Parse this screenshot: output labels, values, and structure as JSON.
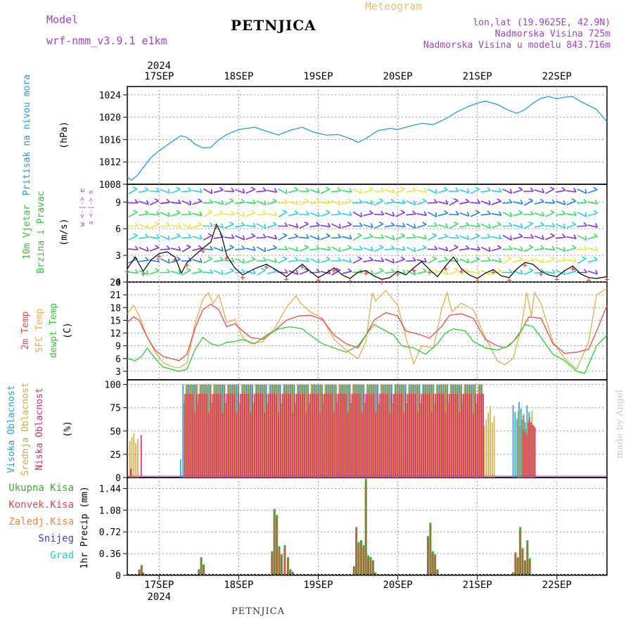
{
  "header": {
    "model_label": "Model",
    "model_name": "wrf-nmm_v3.9.1  e1km",
    "title": "PETNJICA",
    "meteogram": "Meteogram",
    "lonlat": "lon,lat (19.9625E, 42.9N)",
    "altitude": "Nadmorska Visina 725m",
    "model_altitude": "Nadmorska Visina u modelu 843.716m"
  },
  "footer": {
    "station": "PETNJICA",
    "credit": "made by Angel"
  },
  "colors": {
    "pressure": "#1e9be6",
    "t2m": "#f04848",
    "tsfc": "#e0b048",
    "dewpt": "#28d028",
    "high_cloud": "#18a0e8",
    "mid_cloud": "#d8a838",
    "low_cloud": "#d82878",
    "precip_total": "#44a830",
    "precip_conv": "#e84848",
    "precip_strat": "#f08838",
    "snow": "#4040e0",
    "hail": "#28c8c8",
    "wind_label": "#28c828",
    "cloud_axis": "#a040d0"
  },
  "time_axis": {
    "year_top": "2024",
    "year_bottom": "2024",
    "days": [
      "17SEP",
      "18SEP",
      "19SEP",
      "20SEP",
      "21SEP",
      "22SEP"
    ],
    "day_positions": [
      1,
      2,
      3,
      4,
      5,
      6
    ],
    "range": [
      0.6,
      6.63
    ]
  },
  "chart_data": [
    {
      "type": "line",
      "title": "Pritisak na nivou mora",
      "ylabel": "(hPa)",
      "ylim": [
        1008,
        1025.5
      ],
      "yticks": [
        1008,
        1012,
        1016,
        1020,
        1024
      ],
      "grid": true,
      "series": [
        {
          "name": "Pritisak na nivou mora",
          "x": [
            0.6,
            0.65,
            0.72,
            0.8,
            0.9,
            1.0,
            1.1,
            1.2,
            1.27,
            1.35,
            1.45,
            1.55,
            1.65,
            1.75,
            1.85,
            2.0,
            2.2,
            2.35,
            2.5,
            2.65,
            2.8,
            2.95,
            3.1,
            3.25,
            3.4,
            3.5,
            3.6,
            3.75,
            3.9,
            4.0,
            4.15,
            4.3,
            4.45,
            4.6,
            4.75,
            4.9,
            5.0,
            5.1,
            5.25,
            5.4,
            5.5,
            5.6,
            5.7,
            5.8,
            5.9,
            6.0,
            6.1,
            6.2,
            6.3,
            6.4,
            6.5,
            6.63
          ],
          "y": [
            1009.3,
            1008.7,
            1009.5,
            1011,
            1012.8,
            1014,
            1015,
            1016,
            1016.7,
            1016.4,
            1015.2,
            1014.5,
            1014.6,
            1016,
            1016.9,
            1017.8,
            1018.2,
            1017.5,
            1016.8,
            1017.7,
            1018.2,
            1017.3,
            1016.8,
            1016.9,
            1016.2,
            1015.5,
            1016.2,
            1017.6,
            1018,
            1017.8,
            1018.4,
            1018.9,
            1018.7,
            1019.7,
            1021,
            1022,
            1022.5,
            1022.9,
            1022.3,
            1021.2,
            1020.7,
            1021.4,
            1022.5,
            1023.4,
            1023.7,
            1023.3,
            1023.6,
            1023.7,
            1022.8,
            1022.1,
            1021.4,
            1019.2
          ]
        }
      ]
    },
    {
      "type": "line",
      "title": "10m Vjetar Brzina i Pravac",
      "ylabel": "(m/s)",
      "compass_label": "w <-|-> e",
      "compass_sub": "s <-|-> n",
      "ylim": [
        0,
        11
      ],
      "yticks": [
        0,
        3,
        6,
        9
      ],
      "grid": true,
      "series": [
        {
          "name": "wind speed",
          "x": [
            0.6,
            0.7,
            0.8,
            0.9,
            1.0,
            1.1,
            1.2,
            1.28,
            1.35,
            1.45,
            1.55,
            1.65,
            1.72,
            1.78,
            1.85,
            1.95,
            2.05,
            2.2,
            2.35,
            2.5,
            2.6,
            2.7,
            2.8,
            2.9,
            3.0,
            3.1,
            3.2,
            3.3,
            3.4,
            3.5,
            3.6,
            3.7,
            3.8,
            3.9,
            4.0,
            4.1,
            4.2,
            4.3,
            4.4,
            4.5,
            4.6,
            4.7,
            4.8,
            4.9,
            5.0,
            5.1,
            5.2,
            5.3,
            5.4,
            5.5,
            5.6,
            5.7,
            5.8,
            5.9,
            6.0,
            6.1,
            6.2,
            6.3,
            6.4,
            6.5,
            6.63
          ],
          "y": [
            1.5,
            2.8,
            1.2,
            2.5,
            3.2,
            3.4,
            2.8,
            1.0,
            2.2,
            3.0,
            3.8,
            4.5,
            6.5,
            5.4,
            3.0,
            1.6,
            0.8,
            1.5,
            2.0,
            1.2,
            0.6,
            1.3,
            2.0,
            1.2,
            0.5,
            1.0,
            1.6,
            0.8,
            0.4,
            1.1,
            1.3,
            0.7,
            0.3,
            0.5,
            1.2,
            0.8,
            1.6,
            2.3,
            1.4,
            0.6,
            1.8,
            2.8,
            1.5,
            0.8,
            0.4,
            1.0,
            1.4,
            0.7,
            0.5,
            1.5,
            2.2,
            2.0,
            1.2,
            0.8,
            0.6,
            1.3,
            1.8,
            0.9,
            0.5,
            0.4,
            0.6
          ]
        }
      ]
    },
    {
      "type": "line",
      "title": "2m Temp / SFC Temp / dewpt Temp",
      "ylabel": "(C)",
      "ylim": [
        1,
        24
      ],
      "yticks": [
        3,
        6,
        9,
        12,
        15,
        18,
        21,
        24
      ],
      "grid": true,
      "series": [
        {
          "name": "2m Temp",
          "x": [
            0.6,
            0.68,
            0.75,
            0.85,
            0.95,
            1.05,
            1.15,
            1.25,
            1.35,
            1.45,
            1.55,
            1.65,
            1.75,
            1.85,
            1.95,
            2.05,
            2.15,
            2.3,
            2.45,
            2.6,
            2.75,
            2.9,
            3.05,
            3.2,
            3.35,
            3.5,
            3.6,
            3.7,
            3.85,
            4.0,
            4.1,
            4.25,
            4.4,
            4.55,
            4.65,
            4.8,
            4.95,
            5.1,
            5.25,
            5.35,
            5.45,
            5.55,
            5.65,
            5.8,
            5.95,
            6.1,
            6.25,
            6.4,
            6.5,
            6.63
          ],
          "y": [
            14.5,
            15.8,
            15,
            11,
            8,
            6.5,
            6,
            5.5,
            7,
            13,
            17.5,
            18.8,
            17.5,
            13.5,
            14.2,
            12.5,
            11,
            10.5,
            12.5,
            15,
            16,
            16.2,
            15.2,
            11.5,
            9.5,
            8.5,
            11.5,
            15,
            16.8,
            16,
            12.5,
            11.8,
            10.8,
            13.5,
            16.2,
            16.5,
            15.5,
            10.5,
            9,
            8.5,
            10,
            12.5,
            15.8,
            15.5,
            9.5,
            7.2,
            7.5,
            8.2,
            12.5,
            18.5
          ]
        },
        {
          "name": "SFC Temp",
          "x": [
            0.6,
            0.68,
            0.75,
            0.85,
            0.95,
            1.05,
            1.15,
            1.25,
            1.35,
            1.45,
            1.55,
            1.62,
            1.68,
            1.75,
            1.85,
            1.95,
            2.05,
            2.15,
            2.3,
            2.45,
            2.6,
            2.72,
            2.78,
            2.9,
            3.05,
            3.2,
            3.35,
            3.5,
            3.6,
            3.68,
            3.72,
            3.85,
            4.0,
            4.1,
            4.2,
            4.3,
            4.45,
            4.55,
            4.62,
            4.68,
            4.8,
            4.95,
            5.1,
            5.25,
            5.35,
            5.45,
            5.55,
            5.62,
            5.68,
            5.72,
            5.8,
            5.95,
            6.1,
            6.25,
            6.4,
            6.5,
            6.63
          ],
          "y": [
            16.5,
            18.5,
            16,
            11,
            7.5,
            5,
            4.2,
            3.8,
            5,
            14,
            20,
            21.5,
            19,
            21,
            14.5,
            15.2,
            11,
            9.5,
            10,
            13,
            18,
            20.8,
            19,
            17,
            15.5,
            10.5,
            8,
            6,
            10,
            21.5,
            19.5,
            22,
            18.5,
            11,
            4.8,
            9,
            8.5,
            17.5,
            21.5,
            17,
            19,
            17.5,
            11,
            5.5,
            4.5,
            6,
            13,
            21.5,
            16,
            21.5,
            19,
            10,
            6,
            3.5,
            10,
            21,
            22.5
          ]
        },
        {
          "name": "dewpt Temp",
          "x": [
            0.6,
            0.7,
            0.78,
            0.85,
            0.95,
            1.05,
            1.15,
            1.25,
            1.35,
            1.45,
            1.55,
            1.65,
            1.75,
            1.85,
            1.95,
            2.05,
            2.2,
            2.35,
            2.5,
            2.65,
            2.8,
            2.9,
            3.05,
            3.2,
            3.35,
            3.5,
            3.6,
            3.7,
            3.85,
            3.95,
            4.05,
            4.2,
            4.35,
            4.5,
            4.6,
            4.7,
            4.85,
            4.95,
            5.1,
            5.25,
            5.4,
            5.5,
            5.6,
            5.7,
            5.8,
            5.95,
            6.1,
            6.25,
            6.35,
            6.5,
            6.63
          ],
          "y": [
            6,
            5.5,
            6.5,
            8.5,
            6,
            4,
            3.5,
            3,
            3.5,
            8,
            11,
            9.5,
            9,
            9.8,
            10,
            10.5,
            9.5,
            11.5,
            13,
            13.5,
            13,
            11.5,
            9.5,
            8.5,
            7.5,
            9,
            11.5,
            14,
            12.5,
            11.5,
            9,
            8.5,
            7,
            9.5,
            12,
            13,
            12.5,
            10,
            8.5,
            8,
            9,
            11,
            14,
            13.5,
            11,
            7,
            5.5,
            3,
            2.5,
            9,
            11.5
          ]
        }
      ]
    },
    {
      "type": "bar",
      "title": "Visoka Oblacnost / Srednja Oblacnost / Niska Oblacnost",
      "ylabel": "(%)",
      "ylim": [
        0,
        105
      ],
      "yticks": [
        0,
        25,
        50,
        75,
        100
      ],
      "grid": true,
      "note": "vertical bars per model time step; values read from figure",
      "series": [
        {
          "name": "Visoka Oblacnost",
          "segments": [
            [
              0.62,
              0.62,
              0
            ],
            [
              1.27,
              1.27,
              25
            ],
            [
              1.3,
              3.45,
              100
            ],
            [
              3.45,
              4.55,
              100
            ],
            [
              4.55,
              5.05,
              100
            ],
            [
              5.05,
              5.45,
              0
            ],
            [
              5.45,
              5.65,
              85
            ]
          ]
        },
        {
          "name": "Srednja Oblacnost",
          "segments": [
            [
              0.62,
              0.72,
              50
            ],
            [
              1.3,
              3.45,
              100
            ],
            [
              3.45,
              4.55,
              100
            ],
            [
              4.55,
              5.05,
              100
            ],
            [
              5.05,
              5.22,
              80
            ],
            [
              5.5,
              5.72,
              75
            ]
          ]
        },
        {
          "name": "Niska Oblacnost",
          "segments": [
            [
              0.62,
              0.62,
              10
            ],
            [
              0.75,
              0.75,
              50
            ],
            [
              1.3,
              3.45,
              90
            ],
            [
              3.45,
              4.55,
              90
            ],
            [
              4.55,
              5.05,
              90
            ],
            [
              5.55,
              5.72,
              65
            ]
          ]
        }
      ]
    },
    {
      "type": "bar",
      "title": "1hr Precip",
      "ylabel": "1hr Precip (mm)",
      "ylim": [
        0,
        1.62
      ],
      "yticks": [
        0,
        0.36,
        0.72,
        1.08,
        1.44
      ],
      "grid": true,
      "legend_labels": [
        "Ukupna Kisa",
        "Konvek.Kisa",
        "Zaledj.Kisa",
        "Snijeg",
        "Grad"
      ],
      "categories": [
        0.75,
        0.78,
        0.8,
        1.5,
        1.53,
        1.56,
        2.2,
        2.25,
        2.3,
        2.42,
        2.45,
        2.48,
        2.51,
        2.54,
        2.58,
        2.62,
        2.65,
        2.68,
        3.45,
        3.48,
        3.51,
        3.54,
        3.57,
        3.6,
        3.63,
        3.66,
        3.69,
        3.72,
        4.38,
        4.41,
        4.44,
        4.47,
        4.5,
        5.45,
        5.48,
        5.51,
        5.54,
        5.57,
        5.6,
        5.63,
        5.66
      ],
      "values": [
        0.1,
        0.17,
        0.05,
        0.1,
        0.3,
        0.18,
        0.02,
        0.02,
        0.02,
        0.4,
        1.1,
        1.0,
        0.48,
        0.35,
        0.5,
        0.3,
        0.1,
        0.06,
        0.15,
        0.8,
        0.55,
        0.58,
        0.5,
        1.6,
        0.33,
        0.3,
        0.25,
        0.05,
        0.65,
        0.87,
        0.4,
        0.35,
        0.1,
        0.05,
        0.38,
        0.3,
        0.8,
        0.45,
        0.25,
        0.58,
        0.28
      ],
      "convective": [
        0.08,
        0.15,
        0.04,
        0.08,
        0.27,
        0.15,
        0.02,
        0.02,
        0.02,
        0.35,
        1.05,
        0.95,
        0.42,
        0.3,
        0.45,
        0.25,
        0.08,
        0.05,
        0.12,
        0.75,
        0.5,
        0.52,
        0.45,
        1.5,
        0.3,
        0.26,
        0.22,
        0.04,
        0.6,
        0.8,
        0.35,
        0.3,
        0.08,
        0.04,
        0.34,
        0.26,
        0.75,
        0.4,
        0.22,
        0.52,
        0.24
      ]
    }
  ]
}
